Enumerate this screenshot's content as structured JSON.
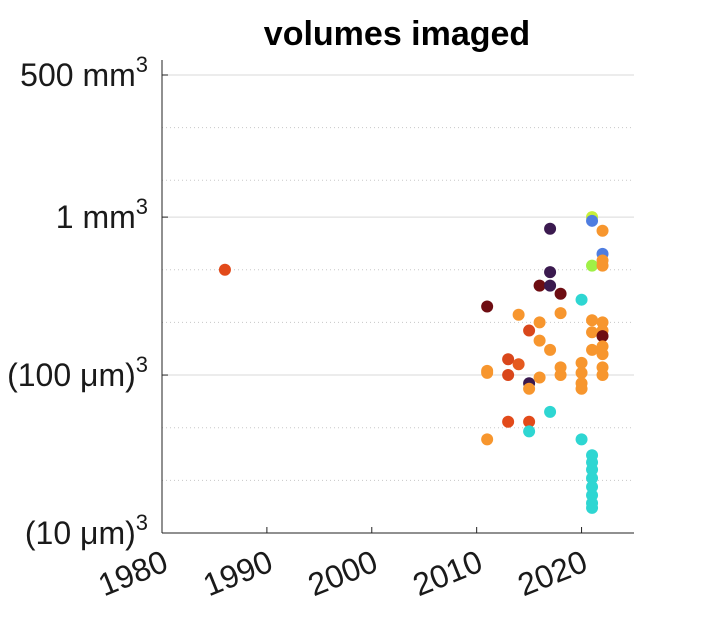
{
  "chart_data": {
    "type": "scatter",
    "title": "volumes imaged",
    "xlabel": "",
    "ylabel": "",
    "x_scale": "linear",
    "y_scale": "log",
    "xlim": [
      1980,
      2025
    ],
    "ylim": [
      1e-06,
      500
    ],
    "grid": "horizontal dotted",
    "legend": "none",
    "x_ticks": [
      {
        "value": 1980,
        "label": "1980"
      },
      {
        "value": 1990,
        "label": "1990"
      },
      {
        "value": 2000,
        "label": "2000"
      },
      {
        "value": 2010,
        "label": "2010"
      },
      {
        "value": 2020,
        "label": "2020"
      }
    ],
    "y_ticks": [
      {
        "value": 500,
        "base": "500 mm",
        "exp": "3"
      },
      {
        "value": 1,
        "base": "1 mm",
        "exp": "3"
      },
      {
        "value": 0.001,
        "base": "(100 μm)",
        "exp": "3"
      },
      {
        "value": 1e-06,
        "base": "(10 μm)",
        "exp": "3"
      }
    ],
    "y_minor_gridlines": [
      50,
      5,
      0.1,
      0.01,
      0.0001,
      1e-05
    ],
    "points": [
      {
        "x": 1986,
        "y": 0.1,
        "color": "#e24a1a"
      },
      {
        "x": 2011,
        "y": 0.02,
        "color": "#6e0d12"
      },
      {
        "x": 2011,
        "y": 0.0012,
        "color": "#f7962e"
      },
      {
        "x": 2011,
        "y": 0.0011,
        "color": "#f7962e"
      },
      {
        "x": 2011,
        "y": 6e-05,
        "color": "#f7962e"
      },
      {
        "x": 2013,
        "y": 0.002,
        "color": "#d9471b"
      },
      {
        "x": 2013,
        "y": 0.001,
        "color": "#d9471b"
      },
      {
        "x": 2013,
        "y": 0.00013,
        "color": "#e24a1a"
      },
      {
        "x": 2014,
        "y": 0.014,
        "color": "#f7962e"
      },
      {
        "x": 2014,
        "y": 0.0016,
        "color": "#e55a1f"
      },
      {
        "x": 2015,
        "y": 0.007,
        "color": "#d9471b"
      },
      {
        "x": 2015,
        "y": 0.0007,
        "color": "#3b1a4f"
      },
      {
        "x": 2015,
        "y": 0.00055,
        "color": "#f7962e"
      },
      {
        "x": 2015,
        "y": 0.00013,
        "color": "#e24a1a"
      },
      {
        "x": 2015,
        "y": 8.5e-05,
        "color": "#2ed6d2"
      },
      {
        "x": 2016,
        "y": 0.05,
        "color": "#6e0d12"
      },
      {
        "x": 2016,
        "y": 0.01,
        "color": "#f7962e"
      },
      {
        "x": 2016,
        "y": 0.0045,
        "color": "#f7962e"
      },
      {
        "x": 2016,
        "y": 0.0009,
        "color": "#f7962e"
      },
      {
        "x": 2017,
        "y": 0.6,
        "color": "#3b1a4f"
      },
      {
        "x": 2017,
        "y": 0.09,
        "color": "#3b1a4f"
      },
      {
        "x": 2017,
        "y": 0.05,
        "color": "#3b1a4f"
      },
      {
        "x": 2017,
        "y": 0.003,
        "color": "#f7962e"
      },
      {
        "x": 2017,
        "y": 0.0002,
        "color": "#2ed6d2"
      },
      {
        "x": 2018,
        "y": 0.035,
        "color": "#6e0d12"
      },
      {
        "x": 2018,
        "y": 0.015,
        "color": "#f7962e"
      },
      {
        "x": 2018,
        "y": 0.0014,
        "color": "#f7962e"
      },
      {
        "x": 2018,
        "y": 0.001,
        "color": "#f7962e"
      },
      {
        "x": 2020,
        "y": 0.027,
        "color": "#2ed6d2"
      },
      {
        "x": 2020,
        "y": 0.0017,
        "color": "#f7962e"
      },
      {
        "x": 2020,
        "y": 0.0011,
        "color": "#f7962e"
      },
      {
        "x": 2020,
        "y": 0.0007,
        "color": "#f7962e"
      },
      {
        "x": 2020,
        "y": 0.00055,
        "color": "#f7962e"
      },
      {
        "x": 2020,
        "y": 6e-05,
        "color": "#2ed6d2"
      },
      {
        "x": 2021,
        "y": 1.0,
        "color": "#c7ef3a"
      },
      {
        "x": 2021,
        "y": 0.85,
        "color": "#4f7de0"
      },
      {
        "x": 2021,
        "y": 0.12,
        "color": "#9ff046"
      },
      {
        "x": 2021,
        "y": 0.011,
        "color": "#f7962e"
      },
      {
        "x": 2021,
        "y": 0.0065,
        "color": "#f7962e"
      },
      {
        "x": 2021,
        "y": 0.003,
        "color": "#f7962e"
      },
      {
        "x": 2021,
        "y": 3e-05,
        "color": "#2ed6d2"
      },
      {
        "x": 2021,
        "y": 2.2e-05,
        "color": "#2ed6d2"
      },
      {
        "x": 2021,
        "y": 1.6e-05,
        "color": "#2ed6d2"
      },
      {
        "x": 2021,
        "y": 1.1e-05,
        "color": "#2ed6d2"
      },
      {
        "x": 2021,
        "y": 7.5e-06,
        "color": "#2ed6d2"
      },
      {
        "x": 2021,
        "y": 5.2e-06,
        "color": "#2ed6d2"
      },
      {
        "x": 2021,
        "y": 3.7e-06,
        "color": "#2ed6d2"
      },
      {
        "x": 2021,
        "y": 3e-06,
        "color": "#2ed6d2"
      },
      {
        "x": 2022,
        "y": 0.55,
        "color": "#f7962e"
      },
      {
        "x": 2022,
        "y": 0.2,
        "color": "#4f7de0"
      },
      {
        "x": 2022,
        "y": 0.15,
        "color": "#f7962e"
      },
      {
        "x": 2022,
        "y": 0.12,
        "color": "#f7962e"
      },
      {
        "x": 2022,
        "y": 0.01,
        "color": "#f7962e"
      },
      {
        "x": 2022,
        "y": 0.007,
        "color": "#f7962e"
      },
      {
        "x": 2022,
        "y": 0.0055,
        "color": "#6e0d12"
      },
      {
        "x": 2022,
        "y": 0.0035,
        "color": "#f7962e"
      },
      {
        "x": 2022,
        "y": 0.0025,
        "color": "#f7962e"
      },
      {
        "x": 2022,
        "y": 0.0014,
        "color": "#f7962e"
      },
      {
        "x": 2022,
        "y": 0.001,
        "color": "#f7962e"
      }
    ]
  }
}
